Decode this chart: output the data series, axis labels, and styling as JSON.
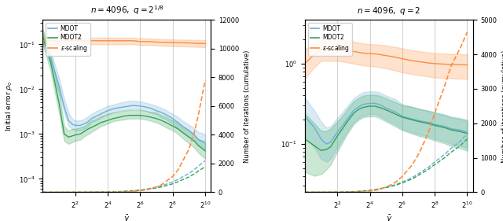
{
  "title1": "$n = 4096,\\ q = 2^{1/8}$",
  "title2": "$n = 4096,\\ q = 2$",
  "xlabel": "$\\bar{\\gamma}$",
  "ylabel_left": "Initial error $\\rho_0$",
  "ylabel_right": "Number of iterations (cumulative)",
  "color_blue": "#6baed6",
  "color_green": "#31a354",
  "color_orange": "#fd8d3c",
  "alpha_fill": 0.25,
  "plot1": {
    "x": [
      1,
      1.4,
      2,
      2.5,
      3,
      3.5,
      4,
      5,
      6,
      7,
      8,
      10,
      12,
      16,
      20,
      24,
      32,
      40,
      48,
      64,
      80,
      96,
      128,
      160,
      192,
      256,
      320,
      384,
      512,
      640,
      768,
      1024
    ],
    "mdot_y": [
      0.14,
      0.05,
      0.012,
      0.004,
      0.002,
      0.00165,
      0.00155,
      0.00155,
      0.0017,
      0.0019,
      0.0022,
      0.0025,
      0.0028,
      0.0033,
      0.0036,
      0.0038,
      0.004,
      0.0042,
      0.0043,
      0.0042,
      0.004,
      0.0038,
      0.0033,
      0.003,
      0.0027,
      0.0022,
      0.0018,
      0.0015,
      0.0012,
      0.00095,
      0.00075,
      0.00065
    ],
    "mdot_y_lo": [
      0.11,
      0.035,
      0.008,
      0.003,
      0.0015,
      0.0013,
      0.0012,
      0.0012,
      0.0013,
      0.0015,
      0.0018,
      0.002,
      0.0023,
      0.0027,
      0.003,
      0.0032,
      0.0034,
      0.0035,
      0.0036,
      0.0035,
      0.0033,
      0.003,
      0.0027,
      0.0023,
      0.0021,
      0.0017,
      0.0013,
      0.0011,
      0.00085,
      0.0007,
      0.00055,
      0.00045
    ],
    "mdot_y_hi": [
      0.18,
      0.07,
      0.018,
      0.006,
      0.003,
      0.0022,
      0.002,
      0.002,
      0.0022,
      0.0025,
      0.0028,
      0.0033,
      0.0036,
      0.0042,
      0.0045,
      0.0048,
      0.0052,
      0.0054,
      0.0055,
      0.0053,
      0.005,
      0.0047,
      0.0042,
      0.0038,
      0.0034,
      0.0028,
      0.0024,
      0.002,
      0.0016,
      0.00135,
      0.0011,
      0.001
    ],
    "mdot2_y": [
      0.15,
      0.04,
      0.005,
      0.001,
      0.00085,
      0.0009,
      0.00095,
      0.001,
      0.00115,
      0.0013,
      0.0014,
      0.0016,
      0.0018,
      0.002,
      0.0022,
      0.0023,
      0.0025,
      0.0026,
      0.0026,
      0.0026,
      0.0025,
      0.0024,
      0.0022,
      0.002,
      0.0018,
      0.0015,
      0.0013,
      0.0011,
      0.00085,
      0.0007,
      0.00055,
      0.00042
    ],
    "mdot2_y_lo": [
      0.1,
      0.025,
      0.003,
      0.0007,
      0.0006,
      0.00065,
      0.0007,
      0.00075,
      0.0009,
      0.001,
      0.0011,
      0.0013,
      0.0015,
      0.0017,
      0.0019,
      0.002,
      0.0021,
      0.0022,
      0.0022,
      0.0022,
      0.0021,
      0.002,
      0.0018,
      0.0016,
      0.0014,
      0.0012,
      0.001,
      0.00082,
      0.00062,
      0.0005,
      0.00038,
      0.00028
    ],
    "mdot2_y_hi": [
      0.22,
      0.06,
      0.009,
      0.0015,
      0.0012,
      0.0013,
      0.0013,
      0.0014,
      0.0015,
      0.0018,
      0.002,
      0.0022,
      0.0025,
      0.0028,
      0.003,
      0.0031,
      0.0033,
      0.0034,
      0.0034,
      0.0034,
      0.0033,
      0.0031,
      0.003,
      0.0026,
      0.0024,
      0.002,
      0.0017,
      0.0014,
      0.0012,
      0.00095,
      0.00075,
      0.00062
    ],
    "eps_solid_y": [
      0.12,
      0.12,
      0.12,
      0.12,
      0.12,
      0.12,
      0.12,
      0.12,
      0.12,
      0.12,
      0.12,
      0.12,
      0.12,
      0.12,
      0.12,
      0.12,
      0.12,
      0.12,
      0.12,
      0.115,
      0.115,
      0.115,
      0.112,
      0.111,
      0.11,
      0.109,
      0.108,
      0.108,
      0.107,
      0.106,
      0.105,
      0.104
    ],
    "eps_solid_y_lo": [
      0.1,
      0.1,
      0.1,
      0.1,
      0.1,
      0.1,
      0.1,
      0.1,
      0.1,
      0.1,
      0.1,
      0.1,
      0.1,
      0.1,
      0.1,
      0.1,
      0.1,
      0.1,
      0.1,
      0.096,
      0.096,
      0.096,
      0.094,
      0.093,
      0.092,
      0.091,
      0.09,
      0.09,
      0.089,
      0.088,
      0.087,
      0.086
    ],
    "eps_solid_y_hi": [
      0.14,
      0.14,
      0.14,
      0.14,
      0.14,
      0.14,
      0.14,
      0.14,
      0.14,
      0.14,
      0.14,
      0.14,
      0.14,
      0.14,
      0.14,
      0.14,
      0.14,
      0.14,
      0.14,
      0.135,
      0.135,
      0.135,
      0.132,
      0.13,
      0.129,
      0.128,
      0.127,
      0.127,
      0.126,
      0.125,
      0.124,
      0.123
    ],
    "mdot_iter_y": [
      2,
      2,
      3,
      3,
      4,
      4,
      5,
      6,
      7,
      9,
      11,
      14,
      18,
      25,
      35,
      46,
      68,
      90,
      118,
      165,
      215,
      270,
      360,
      455,
      555,
      720,
      890,
      1060,
      1310,
      1570,
      1820,
      2200
    ],
    "mdot2_iter_y": [
      2,
      2,
      2,
      3,
      3,
      3,
      4,
      5,
      6,
      7,
      9,
      12,
      15,
      22,
      30,
      39,
      57,
      76,
      98,
      137,
      178,
      223,
      296,
      374,
      455,
      588,
      726,
      864,
      1065,
      1272,
      1478,
      1782
    ],
    "eps_iter_y": [
      2,
      2,
      2,
      2,
      2,
      2,
      2,
      2,
      3,
      3,
      4,
      5,
      6,
      8,
      12,
      17,
      28,
      42,
      63,
      105,
      160,
      230,
      360,
      530,
      750,
      1100,
      1550,
      2100,
      3000,
      4100,
      5400,
      7800
    ],
    "ylim_left": [
      5e-05,
      0.35
    ],
    "ylim_right": [
      0,
      12000
    ]
  },
  "plot2": {
    "x": [
      1,
      1.5,
      2,
      2.5,
      3,
      4,
      5,
      6,
      8,
      10,
      12,
      16,
      20,
      24,
      32,
      48,
      64,
      96,
      128,
      192,
      256,
      384,
      512,
      768,
      1024
    ],
    "mdot_y": [
      0.22,
      0.16,
      0.115,
      0.1,
      0.105,
      0.14,
      0.17,
      0.2,
      0.26,
      0.29,
      0.31,
      0.32,
      0.32,
      0.31,
      0.28,
      0.25,
      0.22,
      0.205,
      0.195,
      0.185,
      0.175,
      0.165,
      0.155,
      0.148,
      0.14
    ],
    "mdot_y_lo": [
      0.12,
      0.09,
      0.065,
      0.06,
      0.065,
      0.09,
      0.115,
      0.14,
      0.185,
      0.21,
      0.225,
      0.235,
      0.235,
      0.225,
      0.2,
      0.175,
      0.155,
      0.14,
      0.132,
      0.124,
      0.116,
      0.108,
      0.1,
      0.094,
      0.088
    ],
    "mdot_y_hi": [
      0.38,
      0.26,
      0.19,
      0.16,
      0.165,
      0.21,
      0.25,
      0.29,
      0.37,
      0.41,
      0.44,
      0.45,
      0.45,
      0.44,
      0.4,
      0.36,
      0.31,
      0.29,
      0.275,
      0.26,
      0.248,
      0.234,
      0.22,
      0.21,
      0.2
    ],
    "mdot2_y": [
      0.115,
      0.095,
      0.083,
      0.085,
      0.092,
      0.125,
      0.155,
      0.185,
      0.24,
      0.27,
      0.285,
      0.295,
      0.295,
      0.285,
      0.265,
      0.235,
      0.215,
      0.2,
      0.19,
      0.18,
      0.17,
      0.16,
      0.15,
      0.142,
      0.135
    ],
    "mdot2_y_lo": [
      0.045,
      0.04,
      0.042,
      0.048,
      0.055,
      0.08,
      0.105,
      0.13,
      0.175,
      0.2,
      0.215,
      0.22,
      0.22,
      0.21,
      0.19,
      0.165,
      0.148,
      0.135,
      0.126,
      0.118,
      0.11,
      0.102,
      0.094,
      0.088,
      0.082
    ],
    "mdot2_y_hi": [
      0.24,
      0.18,
      0.145,
      0.145,
      0.155,
      0.19,
      0.225,
      0.265,
      0.34,
      0.375,
      0.4,
      0.41,
      0.41,
      0.4,
      0.37,
      0.33,
      0.305,
      0.29,
      0.274,
      0.258,
      0.244,
      0.228,
      0.214,
      0.204,
      0.195
    ],
    "eps_solid_y": [
      1.0,
      1.3,
      1.5,
      1.5,
      1.5,
      1.5,
      1.48,
      1.46,
      1.42,
      1.38,
      1.35,
      1.33,
      1.32,
      1.3,
      1.26,
      1.2,
      1.15,
      1.09,
      1.06,
      1.02,
      1.0,
      0.985,
      0.975,
      0.97,
      0.96
    ],
    "eps_solid_y_lo": [
      0.65,
      0.9,
      1.08,
      1.08,
      1.08,
      1.08,
      1.06,
      1.04,
      1.0,
      0.97,
      0.95,
      0.93,
      0.92,
      0.9,
      0.87,
      0.82,
      0.78,
      0.74,
      0.72,
      0.69,
      0.67,
      0.66,
      0.655,
      0.65,
      0.645
    ],
    "eps_solid_y_hi": [
      1.5,
      1.8,
      2.0,
      2.0,
      2.0,
      2.0,
      1.97,
      1.94,
      1.88,
      1.82,
      1.78,
      1.75,
      1.74,
      1.72,
      1.68,
      1.61,
      1.55,
      1.47,
      1.43,
      1.38,
      1.35,
      1.33,
      1.32,
      1.31,
      1.3
    ],
    "mdot_iter_y": [
      2,
      2,
      3,
      3,
      4,
      6,
      8,
      11,
      18,
      27,
      38,
      57,
      78,
      102,
      148,
      222,
      300,
      420,
      540,
      720,
      880,
      1090,
      1270,
      1490,
      1700
    ],
    "mdot2_iter_y": [
      2,
      2,
      3,
      3,
      4,
      5,
      7,
      10,
      16,
      24,
      34,
      52,
      71,
      93,
      135,
      202,
      273,
      382,
      493,
      658,
      805,
      996,
      1158,
      1358,
      1548
    ],
    "eps_iter_y": [
      2,
      2,
      2,
      2,
      2,
      3,
      4,
      5,
      8,
      13,
      20,
      36,
      56,
      84,
      148,
      290,
      460,
      780,
      1100,
      1700,
      2300,
      3050,
      3650,
      4200,
      4650
    ],
    "ylim_left": [
      0.025,
      3.5
    ],
    "ylim_right": [
      0,
      5000
    ]
  }
}
